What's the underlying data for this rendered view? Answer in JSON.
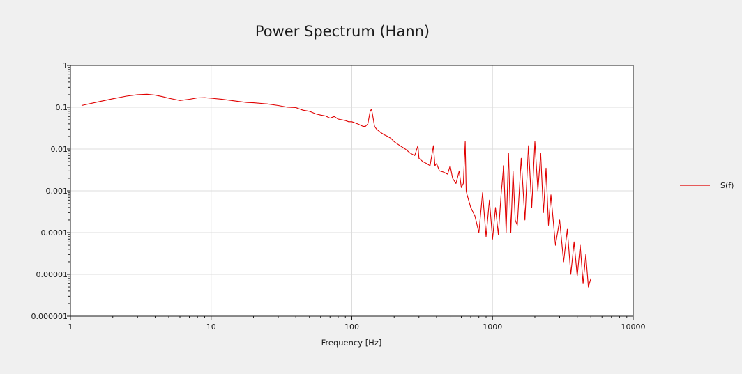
{
  "chart_data": {
    "type": "line",
    "title": "Power Spectrum (Hann)",
    "xlabel": "Frequency [Hz]",
    "ylabel": "",
    "x_scale": "log",
    "y_scale": "log",
    "xlim": [
      1,
      10000
    ],
    "ylim": [
      1e-06,
      1
    ],
    "x_ticks": [
      "1",
      "10",
      "100",
      "1000",
      "10000"
    ],
    "y_ticks": [
      "1",
      "0.1",
      "0.01",
      "0.001",
      "0.0001",
      "0.00001",
      "0.000001"
    ],
    "grid": true,
    "legend_position": "right",
    "series": [
      {
        "name": "S(f)",
        "color": "#e00000",
        "x": [
          1.2,
          1.5,
          2,
          2.5,
          3,
          3.5,
          4,
          4.5,
          5,
          6,
          7,
          8,
          9,
          10,
          12,
          15,
          18,
          20,
          25,
          30,
          35,
          40,
          45,
          50,
          55,
          60,
          65,
          70,
          75,
          80,
          85,
          90,
          95,
          100,
          110,
          120,
          125,
          130,
          135,
          138,
          140,
          145,
          150,
          160,
          170,
          180,
          190,
          200,
          220,
          240,
          260,
          280,
          295,
          300,
          320,
          340,
          360,
          380,
          390,
          400,
          420,
          450,
          480,
          500,
          520,
          550,
          580,
          600,
          620,
          640,
          650,
          660,
          700,
          750,
          800,
          850,
          900,
          950,
          1000,
          1050,
          1100,
          1150,
          1200,
          1250,
          1300,
          1350,
          1400,
          1450,
          1500,
          1600,
          1700,
          1800,
          1900,
          2000,
          2100,
          2200,
          2300,
          2400,
          2500,
          2600,
          2800,
          3000,
          3200,
          3400,
          3600,
          3800,
          4000,
          4200,
          4400,
          4600,
          4800,
          5000
        ],
        "y": [
          0.11,
          0.13,
          0.16,
          0.185,
          0.2,
          0.205,
          0.195,
          0.18,
          0.165,
          0.145,
          0.155,
          0.168,
          0.17,
          0.165,
          0.155,
          0.14,
          0.13,
          0.128,
          0.12,
          0.11,
          0.1,
          0.098,
          0.085,
          0.08,
          0.07,
          0.065,
          0.062,
          0.055,
          0.06,
          0.052,
          0.05,
          0.048,
          0.045,
          0.045,
          0.04,
          0.035,
          0.035,
          0.04,
          0.08,
          0.09,
          0.07,
          0.035,
          0.03,
          0.025,
          0.022,
          0.02,
          0.018,
          0.015,
          0.012,
          0.01,
          0.008,
          0.007,
          0.012,
          0.006,
          0.005,
          0.0045,
          0.004,
          0.012,
          0.004,
          0.0045,
          0.003,
          0.0028,
          0.0025,
          0.004,
          0.002,
          0.0015,
          0.003,
          0.0012,
          0.0015,
          0.015,
          0.001,
          0.0008,
          0.0004,
          0.00025,
          0.0001,
          0.0009,
          8e-05,
          0.0006,
          7e-05,
          0.0004,
          9e-05,
          0.0008,
          0.004,
          0.0001,
          0.008,
          0.0001,
          0.003,
          0.0002,
          0.00015,
          0.006,
          0.0002,
          0.012,
          0.0004,
          0.015,
          0.001,
          0.008,
          0.0003,
          0.0035,
          0.00015,
          0.0008,
          5e-05,
          0.0002,
          2e-05,
          0.00012,
          1e-05,
          6e-05,
          9e-06,
          5e-05,
          6e-06,
          3e-05,
          5e-06,
          8e-06
        ]
      }
    ]
  }
}
